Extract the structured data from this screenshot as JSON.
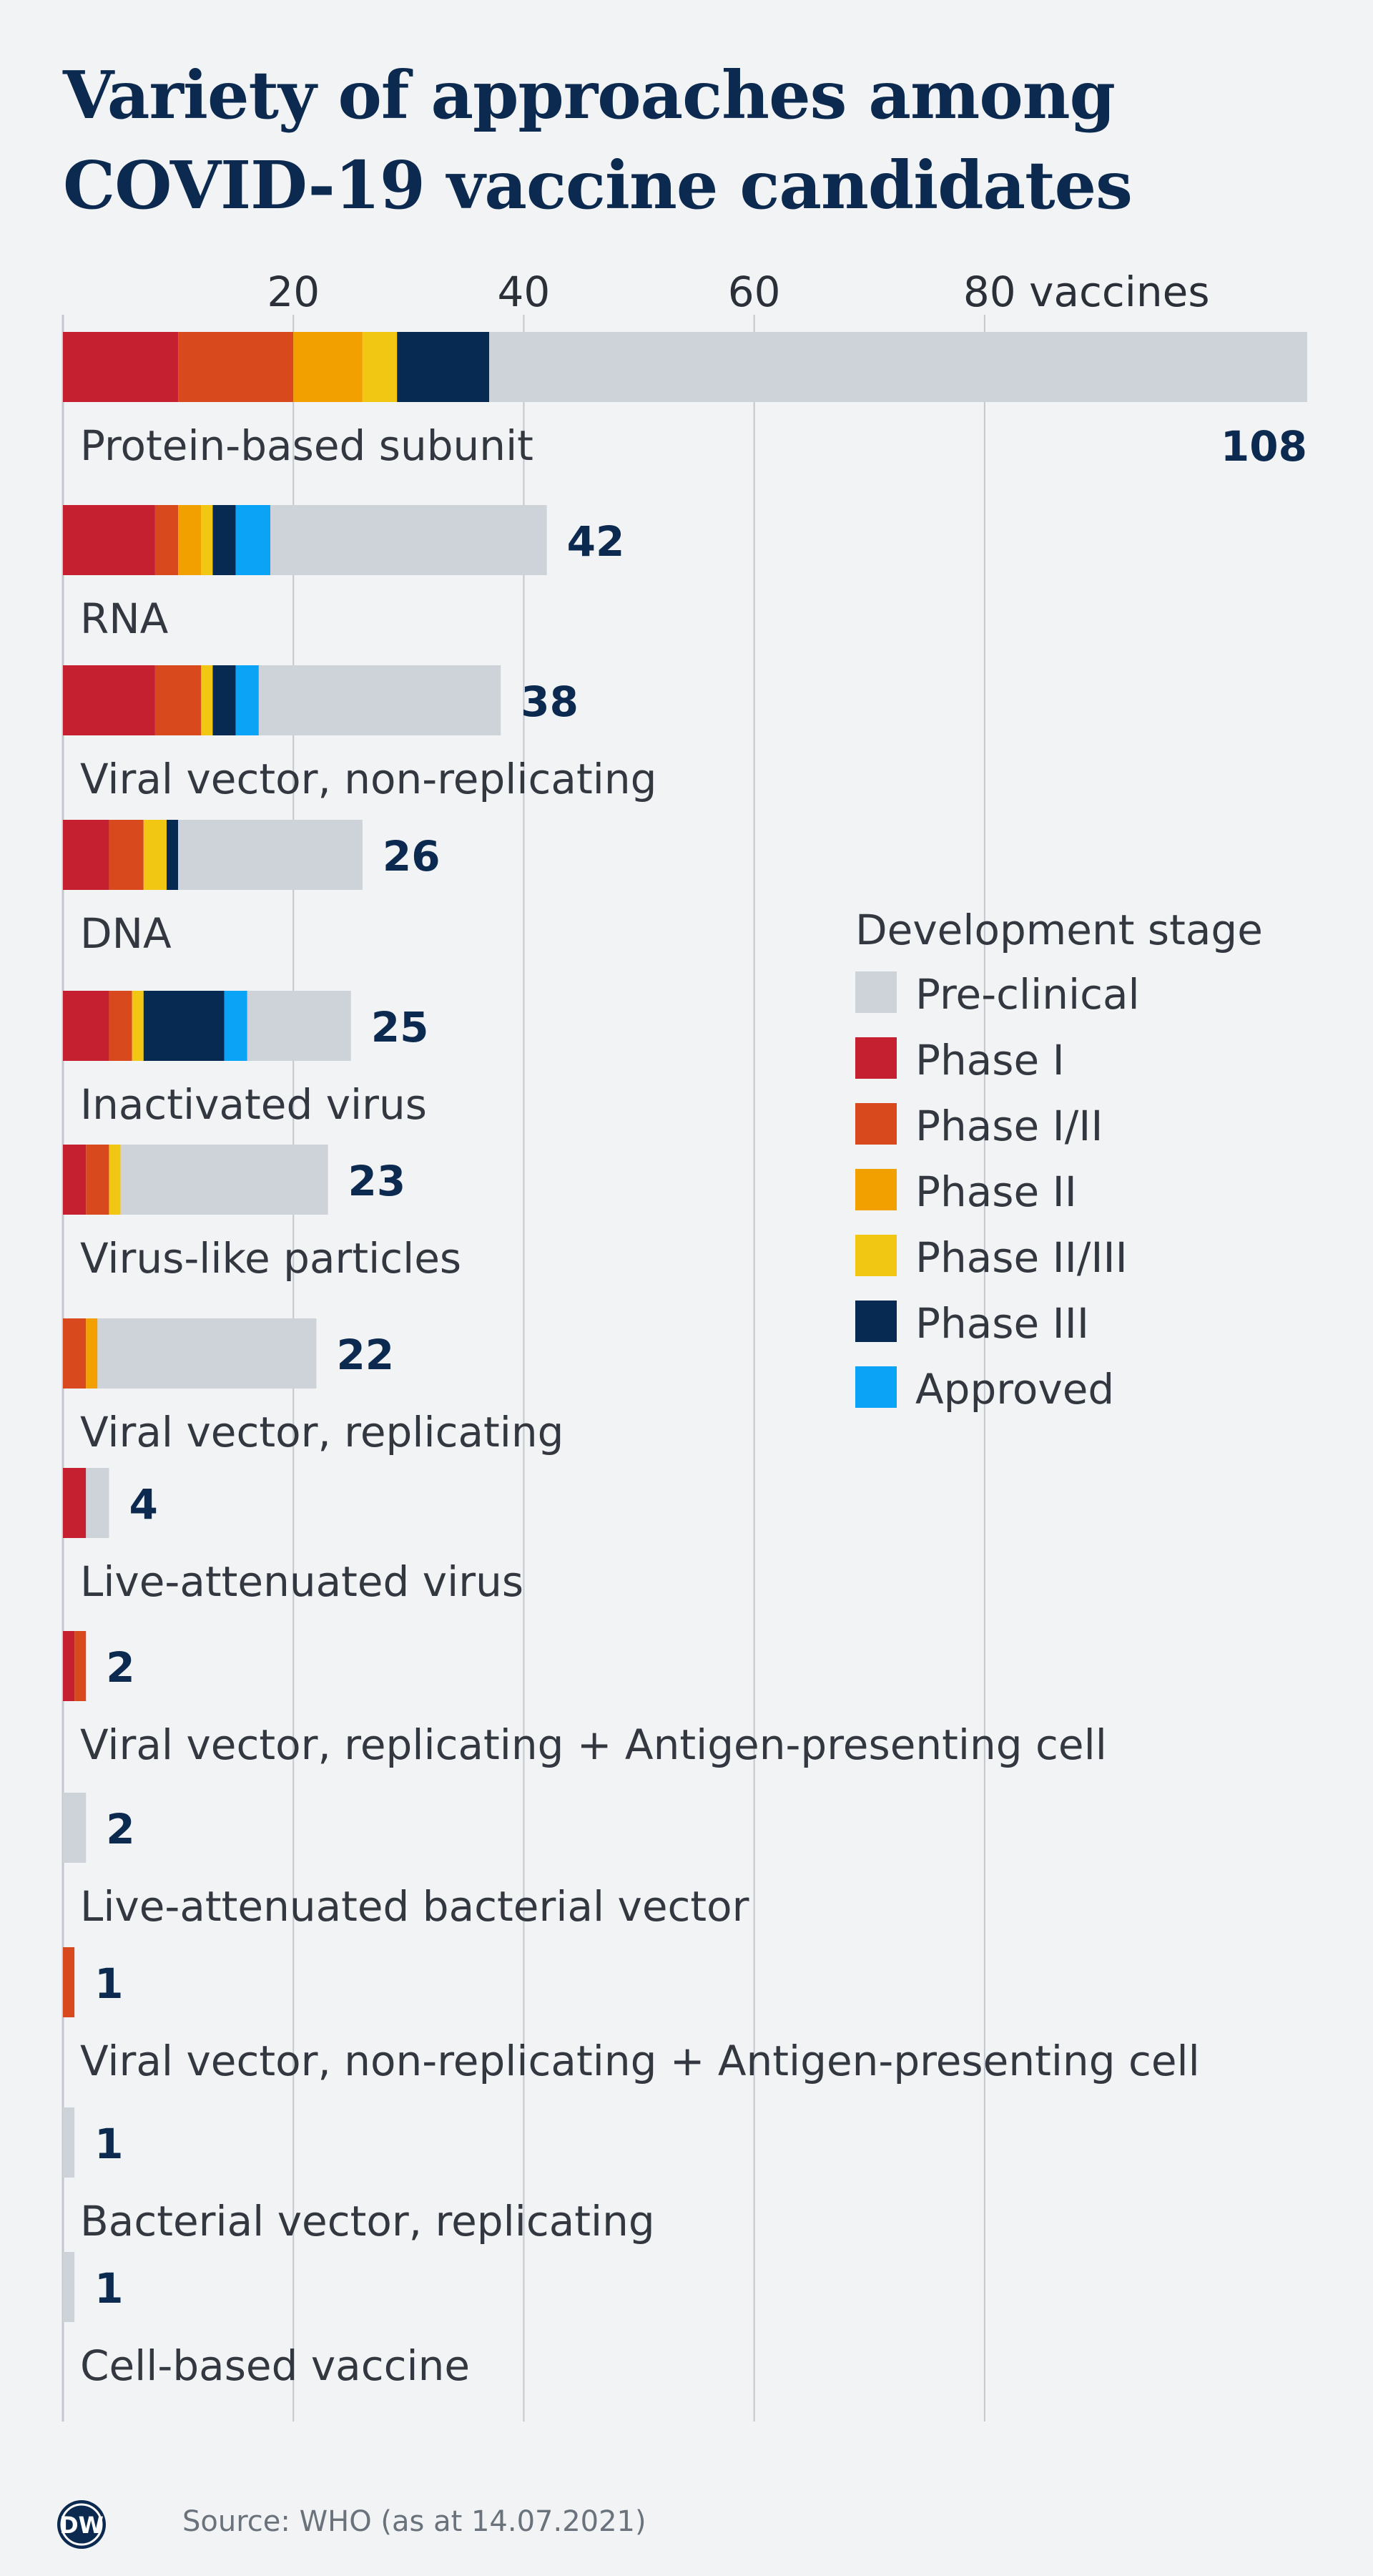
{
  "title_lines": [
    "Variety of approaches among",
    "COVID-19 vaccine candidates"
  ],
  "source": "Source: WHO (as at 14.07.2021)",
  "logo_text": "DW",
  "colors": {
    "preclinical": "#cdd3d9",
    "phase1": "#c4202f",
    "phase1_2": "#d9491e",
    "phase2": "#f2a000",
    "phase2_3": "#f2c713",
    "phase3": "#062a52",
    "approved": "#0aa3f5",
    "value_text": "#0c2a4f",
    "label_text": "#333840",
    "tick_text": "#2b3038",
    "grid": "#c3c8ce"
  },
  "chart_data": {
    "type": "bar",
    "orientation": "horizontal",
    "stacked": true,
    "title": "Variety of approaches among COVID-19 vaccine candidates",
    "xlabel": "",
    "ylabel": "",
    "xlim": [
      0,
      108
    ],
    "xticks": [
      20,
      40,
      60,
      80
    ],
    "xtick_labels": [
      "20",
      "40",
      "60",
      "80 vaccines"
    ],
    "grid": true,
    "legend_title": "Development stage",
    "legend_position": "right",
    "stages": [
      {
        "key": "phase1",
        "name": "Phase I"
      },
      {
        "key": "phase1_2",
        "name": "Phase I/II"
      },
      {
        "key": "phase2",
        "name": "Phase II"
      },
      {
        "key": "phase2_3",
        "name": "Phase II/III"
      },
      {
        "key": "phase3",
        "name": "Phase III"
      },
      {
        "key": "approved",
        "name": "Approved"
      },
      {
        "key": "preclinical",
        "name": "Pre-clinical"
      }
    ],
    "legend_order": [
      "preclinical",
      "phase1",
      "phase1_2",
      "phase2",
      "phase2_3",
      "phase3",
      "approved"
    ],
    "categories": [
      {
        "name": "Protein-based subunit",
        "total": 108,
        "segments": {
          "phase1": 10,
          "phase1_2": 10,
          "phase2": 6,
          "phase2_3": 3,
          "phase3": 8,
          "approved": 0,
          "preclinical": 71
        }
      },
      {
        "name": "RNA",
        "total": 42,
        "segments": {
          "phase1": 8,
          "phase1_2": 2,
          "phase2": 2,
          "phase2_3": 1,
          "phase3": 2,
          "approved": 3,
          "preclinical": 24
        }
      },
      {
        "name": "Viral vector, non-replicating",
        "total": 38,
        "segments": {
          "phase1": 8,
          "phase1_2": 4,
          "phase2": 0,
          "phase2_3": 1,
          "phase3": 2,
          "approved": 2,
          "preclinical": 21
        }
      },
      {
        "name": "DNA",
        "total": 26,
        "segments": {
          "phase1": 4,
          "phase1_2": 3,
          "phase2": 0,
          "phase2_3": 2,
          "phase3": 1,
          "approved": 0,
          "preclinical": 16
        }
      },
      {
        "name": "Inactivated virus",
        "total": 25,
        "segments": {
          "phase1": 4,
          "phase1_2": 2,
          "phase2": 0,
          "phase2_3": 1,
          "phase3": 7,
          "approved": 2,
          "preclinical": 9
        }
      },
      {
        "name": "Virus-like particles",
        "total": 23,
        "segments": {
          "phase1": 2,
          "phase1_2": 2,
          "phase2": 0,
          "phase2_3": 1,
          "phase3": 0,
          "approved": 0,
          "preclinical": 18
        }
      },
      {
        "name": "Viral vector, replicating",
        "total": 22,
        "segments": {
          "phase1": 0,
          "phase1_2": 2,
          "phase2": 1,
          "phase2_3": 0,
          "phase3": 0,
          "approved": 0,
          "preclinical": 19
        }
      },
      {
        "name": "Live-attenuated virus",
        "total": 4,
        "segments": {
          "phase1": 2,
          "phase1_2": 0,
          "phase2": 0,
          "phase2_3": 0,
          "phase3": 0,
          "approved": 0,
          "preclinical": 2
        }
      },
      {
        "name": "Viral vector, replicating + Antigen-presenting cell",
        "total": 2,
        "segments": {
          "phase1": 1,
          "phase1_2": 1,
          "phase2": 0,
          "phase2_3": 0,
          "phase3": 0,
          "approved": 0,
          "preclinical": 0
        }
      },
      {
        "name": "Live-attenuated bacterial vector",
        "total": 2,
        "segments": {
          "phase1": 0,
          "phase1_2": 0,
          "phase2": 0,
          "phase2_3": 0,
          "phase3": 0,
          "approved": 0,
          "preclinical": 2
        }
      },
      {
        "name": "Viral vector, non-replicating + Antigen-presenting cell",
        "total": 1,
        "segments": {
          "phase1": 0,
          "phase1_2": 1,
          "phase2": 0,
          "phase2_3": 0,
          "phase3": 0,
          "approved": 0,
          "preclinical": 0
        }
      },
      {
        "name": "Bacterial vector, replicating",
        "total": 1,
        "segments": {
          "phase1": 0,
          "phase1_2": 0,
          "phase2": 0,
          "phase2_3": 0,
          "phase3": 0,
          "approved": 0,
          "preclinical": 1
        }
      },
      {
        "name": "Cell-based vaccine",
        "total": 1,
        "segments": {
          "phase1": 0,
          "phase1_2": 0,
          "phase2": 0,
          "phase2_3": 0,
          "phase3": 0,
          "approved": 0,
          "preclinical": 1
        }
      }
    ]
  }
}
